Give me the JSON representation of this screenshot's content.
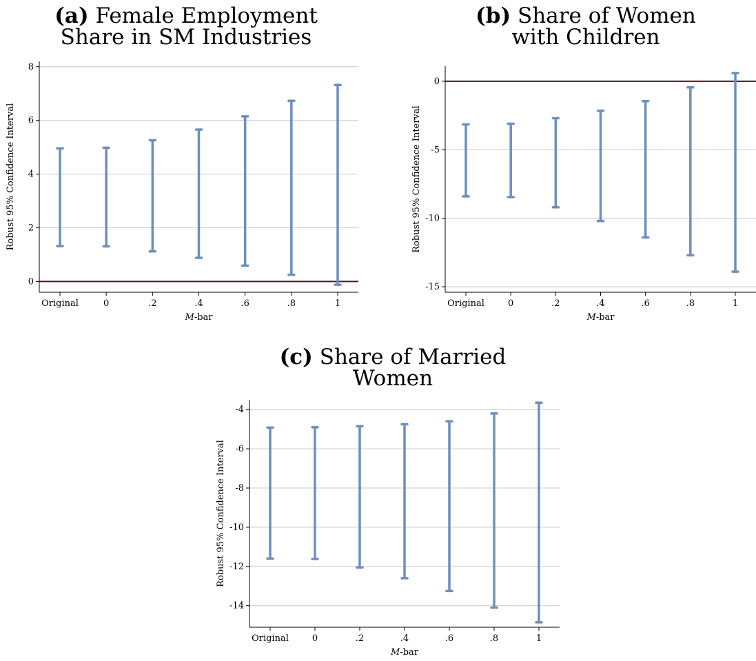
{
  "chart_data": [
    {
      "type": "error-bar",
      "title_tag": "(a)",
      "title_line1": "Female Employment",
      "title_line2": "Share in SM Industries",
      "xlabel_prefix": "M",
      "xlabel_suffix": "-bar",
      "ylabel": "Robust 95% Confidence Interval",
      "categories": [
        "Original",
        "0",
        ".2",
        ".4",
        ".6",
        ".8",
        "1"
      ],
      "lower": [
        1.32,
        1.31,
        1.12,
        0.88,
        0.59,
        0.25,
        -0.12
      ],
      "upper": [
        4.96,
        4.98,
        5.26,
        5.66,
        6.15,
        6.73,
        7.32
      ],
      "ylim": [
        -0.4,
        8.2
      ],
      "yticks": [
        0,
        2,
        4,
        6,
        8
      ],
      "ytick_labels": [
        "0",
        "2",
        "4",
        "6",
        "8"
      ],
      "reference_line": 0,
      "grid": true
    },
    {
      "type": "error-bar",
      "title_tag": "(b)",
      "title_line1": "Share of Women",
      "title_line2": "with Children",
      "xlabel_prefix": "M",
      "xlabel_suffix": "-bar",
      "ylabel": "Robust 95% Confidence Interval",
      "categories": [
        "Original",
        "0",
        ".2",
        ".4",
        ".6",
        ".8",
        "1"
      ],
      "lower": [
        -8.4,
        -8.45,
        -9.2,
        -10.2,
        -11.4,
        -12.7,
        -13.9
      ],
      "upper": [
        -3.15,
        -3.1,
        -2.7,
        -2.15,
        -1.45,
        -0.45,
        0.6
      ],
      "ylim": [
        -15.4,
        1.1
      ],
      "yticks": [
        0,
        -5,
        -10,
        -15
      ],
      "ytick_labels": [
        "0",
        "-5",
        "-10",
        "-15"
      ],
      "reference_line": 0,
      "grid": true
    },
    {
      "type": "error-bar",
      "title_tag": "(c)",
      "title_line1": "Share of Married",
      "title_line2": "Women",
      "xlabel_prefix": "M",
      "xlabel_suffix": "-bar",
      "ylabel": "Robust 95% Confidence Interval",
      "categories": [
        "Original",
        "0",
        ".2",
        ".4",
        ".6",
        ".8",
        "1"
      ],
      "lower": [
        -11.6,
        -11.62,
        -12.05,
        -12.6,
        -13.25,
        -14.1,
        -14.85
      ],
      "upper": [
        -4.92,
        -4.9,
        -4.85,
        -4.75,
        -4.6,
        -4.2,
        -3.65
      ],
      "ylim": [
        -15.1,
        -3.5
      ],
      "yticks": [
        -4,
        -6,
        -8,
        -10,
        -12,
        -14
      ],
      "ytick_labels": [
        "-4",
        "-6",
        "-8",
        "-10",
        "-12",
        "-14"
      ],
      "reference_line": null,
      "grid": true
    }
  ],
  "colors": {
    "bar": "#6d8fbd",
    "reference_line": "#4a1520",
    "grid": "#c8c8c8",
    "axis": "#000000"
  }
}
